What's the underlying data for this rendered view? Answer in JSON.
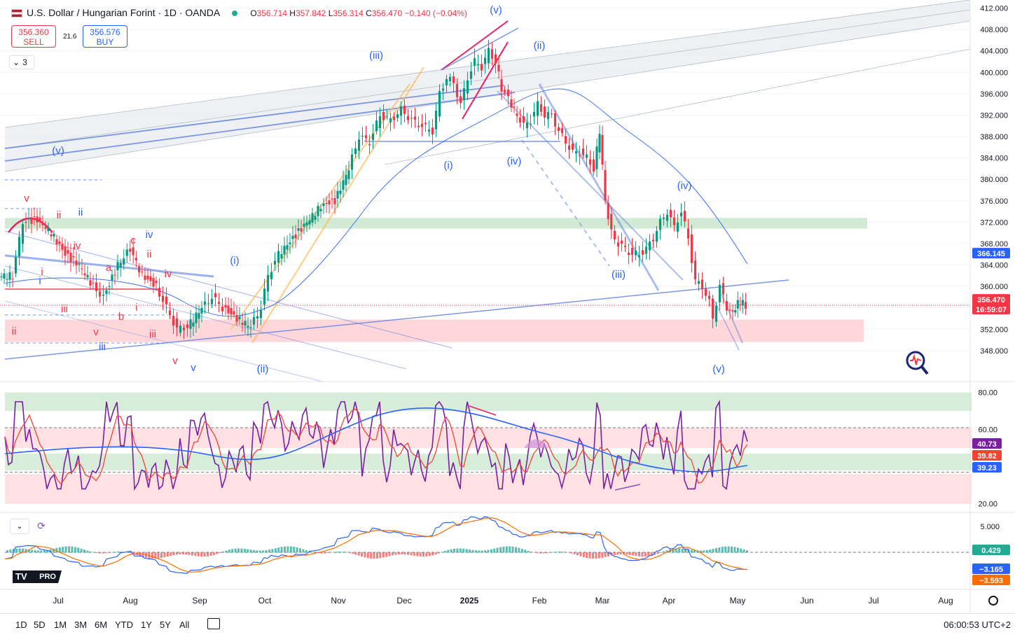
{
  "header": {
    "symbol": "U.S. Dollar / Hungarian Forint · 1D · OANDA",
    "ohlc": [
      {
        "label": "O",
        "value": "356.714"
      },
      {
        "label": "H",
        "value": "357.842"
      },
      {
        "label": "L",
        "value": "356.314"
      },
      {
        "label": "C",
        "value": "356.470"
      }
    ],
    "change": "−0.140 (−0.04%)"
  },
  "trade": {
    "sell_price": "356.360",
    "sell_label": "SELL",
    "spread": "21.6",
    "buy_price": "356.576",
    "buy_label": "BUY"
  },
  "legend_count": "3",
  "colors": {
    "up": "#089981",
    "down": "#f23645",
    "wave_blue": "#2962ff",
    "wave_red": "#f23645",
    "rsi": "#7b1fa2",
    "rsi_ma": "#f44336",
    "rsi_slow": "#2962ff",
    "macd": "#2962ff",
    "signal": "#ff6d00",
    "zone_green": "#c8e6c9",
    "zone_red": "#ffcdd2"
  },
  "chart_data": [
    {
      "type": "candlestick",
      "title": "U.S. Dollar / Hungarian Forint · 1D · OANDA",
      "ylim": [
        345.5,
        412.2
      ],
      "y_ticks": [
        "412.000",
        "408.000",
        "404.000",
        "400.000",
        "396.000",
        "392.000",
        "388.000",
        "384.000",
        "380.000",
        "376.000",
        "372.000",
        "368.000",
        "364.000",
        "360.000",
        "356.000",
        "352.000",
        "348.000"
      ],
      "x_ticks": [
        "Jul",
        "Aug",
        "Sep",
        "Oct",
        "Nov",
        "Dec",
        "2025",
        "Feb",
        "Mar",
        "Apr",
        "May",
        "Jun",
        "Jul",
        "Aug"
      ],
      "price_labels": [
        {
          "value": "366.145",
          "color": "#2962ff"
        },
        {
          "value": "356.470",
          "color": "#f23645"
        },
        {
          "value": "16:59:07",
          "color": "#f23645"
        }
      ],
      "close_path": [
        [
          0,
          362
        ],
        [
          20,
          362
        ],
        [
          35,
          372
        ],
        [
          55,
          372.5
        ],
        [
          75,
          370
        ],
        [
          95,
          366
        ],
        [
          115,
          364
        ],
        [
          135,
          360
        ],
        [
          150,
          358
        ],
        [
          170,
          364
        ],
        [
          188,
          367
        ],
        [
          205,
          362
        ],
        [
          225,
          360
        ],
        [
          240,
          356
        ],
        [
          255,
          352
        ],
        [
          270,
          352.5
        ],
        [
          290,
          356
        ],
        [
          305,
          358
        ],
        [
          320,
          356
        ],
        [
          340,
          354
        ],
        [
          360,
          352.5
        ],
        [
          375,
          356
        ],
        [
          385,
          362
        ],
        [
          400,
          366
        ],
        [
          420,
          369
        ],
        [
          440,
          372
        ],
        [
          460,
          375
        ],
        [
          480,
          376
        ],
        [
          500,
          382
        ],
        [
          515,
          388
        ],
        [
          530,
          387
        ],
        [
          545,
          392
        ],
        [
          560,
          391
        ],
        [
          575,
          393
        ],
        [
          590,
          391
        ],
        [
          605,
          390
        ],
        [
          620,
          389
        ],
        [
          630,
          396
        ],
        [
          640,
          399
        ],
        [
          650,
          398
        ],
        [
          660,
          394
        ],
        [
          670,
          399
        ],
        [
          680,
          402
        ],
        [
          690,
          401
        ],
        [
          700,
          404
        ],
        [
          710,
          402
        ],
        [
          718,
          397
        ],
        [
          728,
          395
        ],
        [
          740,
          392
        ],
        [
          750,
          390
        ],
        [
          760,
          391
        ],
        [
          770,
          394
        ],
        [
          780,
          392
        ],
        [
          790,
          392
        ],
        [
          800,
          389
        ],
        [
          810,
          387
        ],
        [
          820,
          385
        ],
        [
          830,
          385
        ],
        [
          840,
          384
        ],
        [
          850,
          382
        ],
        [
          858,
          389
        ],
        [
          866,
          376
        ],
        [
          875,
          370
        ],
        [
          885,
          368
        ],
        [
          895,
          367
        ],
        [
          905,
          366
        ],
        [
          915,
          366
        ],
        [
          925,
          367
        ],
        [
          935,
          369
        ],
        [
          945,
          372
        ],
        [
          955,
          374
        ],
        [
          965,
          371
        ],
        [
          975,
          374
        ],
        [
          985,
          369
        ],
        [
          995,
          361
        ],
        [
          1005,
          360
        ],
        [
          1015,
          357
        ],
        [
          1020,
          354
        ],
        [
          1030,
          360
        ],
        [
          1040,
          356
        ],
        [
          1048,
          355
        ],
        [
          1055,
          357
        ],
        [
          1062,
          357
        ],
        [
          1067,
          356.5
        ]
      ],
      "range_bars": [
        [
          12,
          398
        ],
        [
          15,
          402
        ],
        [
          19,
          402
        ],
        [
          21,
          398
        ],
        [
          25,
          402
        ]
      ],
      "wave_labels": [
        {
          "text": "(v)",
          "color": "#2962ff"
        },
        {
          "text": "(iii)",
          "color": "#2962ff"
        },
        {
          "text": "(ii)",
          "color": "#2962ff"
        },
        {
          "text": "(iv)",
          "color": "#2962ff"
        },
        {
          "text": "(i)",
          "color": "#2962ff"
        },
        {
          "text": "(iv)",
          "color": "#2962ff"
        },
        {
          "text": "(i)",
          "color": "#2962ff"
        },
        {
          "text": "(iii)",
          "color": "#2962ff"
        },
        {
          "text": "(ii)",
          "color": "#2962ff"
        },
        {
          "text": "(v)",
          "color": "#2962ff"
        },
        {
          "text": "(v)",
          "color": "#2962ff"
        },
        {
          "text": "v",
          "color": "#f23645"
        },
        {
          "text": "ii",
          "color": "#f23645"
        },
        {
          "text": "ii",
          "color": "#2962ff"
        },
        {
          "text": "iv",
          "color": "#2962ff"
        },
        {
          "text": "c",
          "color": "#f23645"
        },
        {
          "text": "ii",
          "color": "#f23645"
        },
        {
          "text": "iv",
          "color": "#f23645"
        },
        {
          "text": "a",
          "color": "#f23645"
        },
        {
          "text": "i",
          "color": "#2962ff"
        },
        {
          "text": "iv",
          "color": "#f23645"
        },
        {
          "text": "i",
          "color": "#f23645"
        },
        {
          "text": "iii",
          "color": "#f23645"
        },
        {
          "text": "b",
          "color": "#f23645"
        },
        {
          "text": "i",
          "color": "#f23645"
        },
        {
          "text": "ii",
          "color": "#f23645"
        },
        {
          "text": "v",
          "color": "#f23645"
        },
        {
          "text": "iii",
          "color": "#f23645"
        },
        {
          "text": "iii",
          "color": "#2962ff"
        },
        {
          "text": "v",
          "color": "#f23645"
        },
        {
          "text": "v",
          "color": "#2962ff"
        }
      ]
    },
    {
      "type": "line",
      "title": "RSI",
      "ylim": [
        18,
        84
      ],
      "y_ticks": [
        "80.00",
        "60.00",
        "20.00"
      ],
      "value_labels": [
        {
          "value": "40.73",
          "color": "#7b1fa2"
        },
        {
          "value": "39.82",
          "color": "#f44336"
        },
        {
          "value": "39.23",
          "color": "#2962ff"
        }
      ]
    },
    {
      "type": "line",
      "title": "MACD",
      "y_ticks": [
        "5.000"
      ],
      "value_labels": [
        {
          "value": "0.429",
          "color": "#22ab94"
        },
        {
          "value": "−3.165",
          "color": "#2962ff"
        },
        {
          "value": "−3.593",
          "color": "#ff6d00"
        }
      ]
    }
  ],
  "bottom_bar": {
    "ranges": [
      "1D",
      "5D",
      "1M",
      "3M",
      "6M",
      "YTD",
      "1Y",
      "5Y",
      "All"
    ],
    "clock": "06:00:53 UTC+2"
  },
  "logo_text": "PRO"
}
